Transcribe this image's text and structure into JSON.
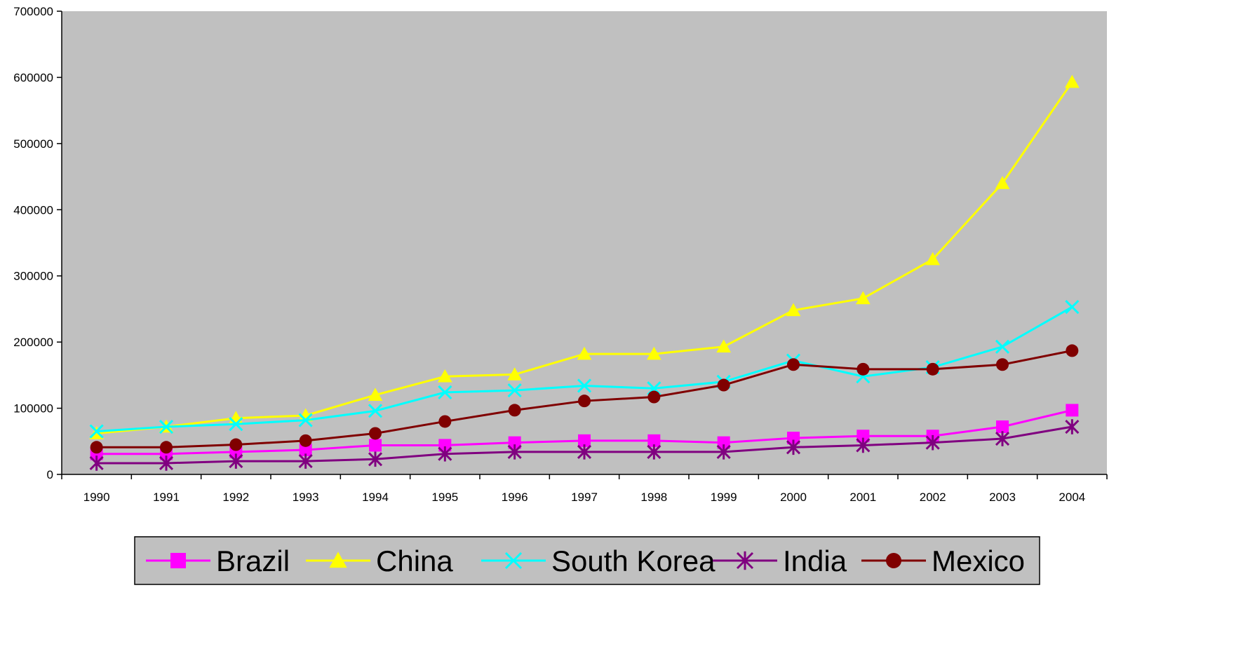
{
  "chart_data": {
    "type": "line",
    "x": [
      "1990",
      "1991",
      "1992",
      "1993",
      "1994",
      "1995",
      "1996",
      "1997",
      "1998",
      "1999",
      "2000",
      "2001",
      "2002",
      "2003",
      "2004"
    ],
    "ylim": [
      0,
      700000
    ],
    "yticks": [
      "0",
      "100000",
      "200000",
      "300000",
      "400000",
      "500000",
      "600000",
      "700000"
    ],
    "grid": false,
    "plot_background": "#c0c0c0",
    "legend_position": "bottom",
    "series": [
      {
        "name": "Brazil",
        "color": "#ff00ff",
        "marker": "square",
        "values": [
          31000,
          31000,
          34000,
          37000,
          44000,
          44000,
          48000,
          51000,
          51000,
          48000,
          55000,
          58000,
          58000,
          72000,
          97000
        ]
      },
      {
        "name": "China",
        "color": "#ffff00",
        "marker": "triangle",
        "values": [
          62000,
          72000,
          85000,
          89000,
          120000,
          148000,
          151000,
          182000,
          182000,
          193000,
          248000,
          266000,
          325000,
          440000,
          593000
        ]
      },
      {
        "name": "South Korea",
        "color": "#00ffff",
        "marker": "x",
        "values": [
          65000,
          72000,
          76000,
          82000,
          96000,
          124000,
          127000,
          134000,
          130000,
          140000,
          172000,
          148000,
          162000,
          193000,
          253000
        ]
      },
      {
        "name": "India",
        "color": "#800080",
        "marker": "asterisk",
        "values": [
          17000,
          17000,
          20000,
          20000,
          23000,
          31000,
          34000,
          34000,
          34000,
          34000,
          41000,
          44000,
          48000,
          54000,
          72000
        ]
      },
      {
        "name": "Mexico",
        "color": "#800000",
        "marker": "circle",
        "values": [
          41000,
          41000,
          45000,
          51000,
          62000,
          80000,
          97000,
          111000,
          117000,
          135000,
          166000,
          159000,
          159000,
          166000,
          187000
        ]
      }
    ]
  }
}
